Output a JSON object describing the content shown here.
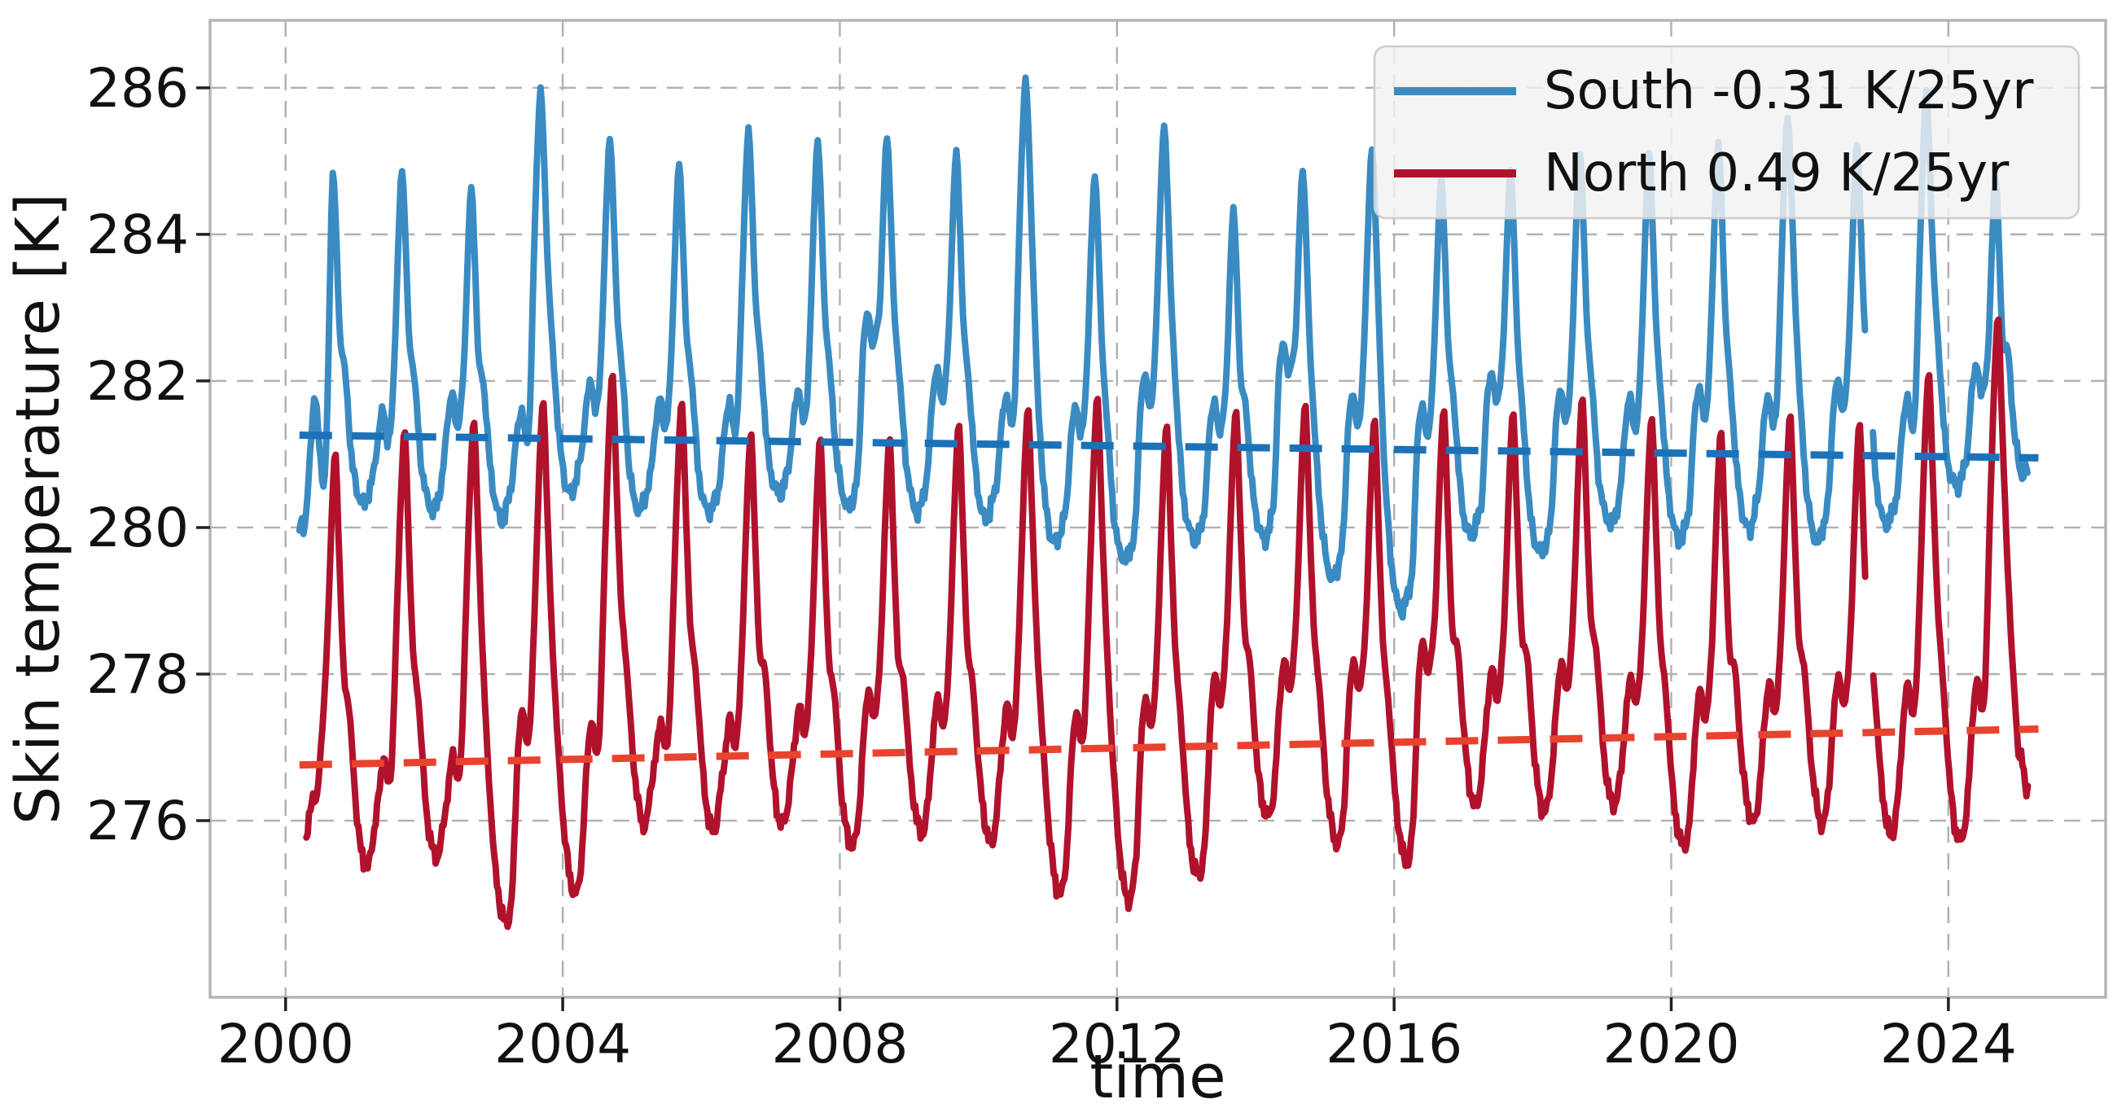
{
  "chart_data": {
    "type": "line",
    "title": "",
    "xlabel": "time",
    "ylabel": "Skin temperature [K]",
    "x_ticks": [
      2000,
      2004,
      2008,
      2012,
      2016,
      2020,
      2024
    ],
    "y_ticks": [
      276,
      278,
      280,
      282,
      284,
      286
    ],
    "x_range": [
      1998.91,
      2026.27
    ],
    "y_range": [
      273.59,
      286.92
    ],
    "grid": true,
    "legend_position": "upper right",
    "colors": {
      "south_line": "#3a8bc2",
      "south_trend": "#1b72b8",
      "north_line": "#b0122c",
      "north_trend": "#e8432e",
      "grid": "#b0b0b0",
      "spine": "#b5b5b5",
      "tick": "#222222",
      "text": "#111111",
      "legend_bg": "#f2f2f2",
      "legend_edge": "#cccccc"
    },
    "series": [
      {
        "name": "South",
        "label": "South -0.31 K/25yr",
        "trend_rate_k_per_25yr": -0.31,
        "t_start": 2000.2,
        "t_end": 2025.15,
        "peak_phase": 0.68,
        "gap": [
          2022.8,
          2022.9
        ],
        "trend": {
          "t": [
            2000.2,
            2025.3
          ],
          "v": [
            281.26,
            280.95
          ]
        },
        "years_start": 2000,
        "peaks": [
          285.15,
          285.1,
          284.85,
          286.2,
          285.55,
          285.2,
          285.65,
          285.5,
          285.55,
          285.35,
          286.35,
          285.05,
          285.7,
          284.55,
          285.1,
          285.4,
          285.0,
          285.1,
          285.35,
          285.3,
          285.45,
          285.85,
          285.45,
          286.15,
          285.0
        ],
        "troughs": [
          280.27,
          280.2,
          280.1,
          280.45,
          280.2,
          280.15,
          280.4,
          280.25,
          280.2,
          280.1,
          279.75,
          279.5,
          279.78,
          279.82,
          279.3,
          278.85,
          279.85,
          279.6,
          280.0,
          279.8,
          279.97,
          279.8,
          280.0,
          280.5,
          280.6
        ],
        "bumps": [
          281.67,
          281.9,
          281.7,
          282.1,
          281.85,
          281.8,
          281.95,
          283.0,
          282.25,
          281.9,
          281.75,
          282.15,
          281.8,
          282.6,
          281.9,
          281.75,
          282.2,
          281.95,
          281.85,
          282.0,
          281.9,
          282.1,
          281.85,
          282.3,
          282.0
        ],
        "template": [
          [
            0,
            "P",
            0
          ],
          [
            0.05,
            "P",
            -1.1
          ],
          [
            0.1,
            "P",
            -2.6
          ],
          [
            0.18,
            "L",
            1.9
          ],
          [
            0.27,
            "L",
            0.7
          ],
          [
            0.35,
            "L",
            0.18
          ],
          [
            0.45,
            "L",
            0
          ],
          [
            0.52,
            "L",
            0.22
          ],
          [
            0.59,
            "L",
            0.5
          ],
          [
            0.655,
            "B",
            -0.45
          ],
          [
            0.73,
            "B",
            0
          ],
          [
            0.79,
            "B",
            -0.58
          ],
          [
            0.845,
            "B",
            -0.3
          ],
          [
            0.9,
            "N",
            -2.6
          ],
          [
            0.95,
            "N",
            -1.1
          ],
          [
            1,
            "N",
            0
          ]
        ],
        "start_points": [
          [
            2000.2,
            279.95
          ],
          [
            2000.23,
            280.12
          ],
          [
            2000.26,
            279.98
          ],
          [
            2000.3,
            280.25
          ],
          [
            2000.35,
            280.9
          ],
          [
            2000.4,
            281.7
          ],
          [
            2000.43,
            281.88
          ],
          [
            2000.47,
            281.25
          ],
          [
            2000.52,
            280.75
          ],
          [
            2000.56,
            280.5
          ],
          [
            2000.6,
            281.4
          ],
          [
            2000.64,
            283.4
          ]
        ],
        "end_points": [
          [
            2025.08,
            280.62
          ],
          [
            2025.11,
            280.84
          ],
          [
            2025.15,
            280.75
          ]
        ],
        "cycle_cutoff": 2025.06,
        "noise_seed": 7
      },
      {
        "name": "North",
        "label": "North 0.49 K/25yr",
        "trend_rate_k_per_25yr": 0.49,
        "t_start": 2000.3,
        "t_end": 2025.15,
        "peak_phase": 0.72,
        "gap": [
          2022.81,
          2022.91
        ],
        "trend": {
          "t": [
            2000.2,
            2025.3
          ],
          "v": [
            276.76,
            277.25
          ]
        },
        "years_start": 2000,
        "peaks": [
          281.3,
          281.6,
          281.75,
          282.0,
          282.35,
          282.0,
          281.6,
          281.5,
          281.5,
          281.7,
          281.9,
          282.05,
          281.7,
          281.9,
          281.95,
          281.75,
          281.9,
          281.85,
          282.05,
          281.8,
          281.6,
          281.8,
          281.7,
          282.4,
          283.15
        ],
        "troughs": [
          275.33,
          275.45,
          274.57,
          275.0,
          275.95,
          275.85,
          275.9,
          275.6,
          275.8,
          275.7,
          275.0,
          274.9,
          275.2,
          276.0,
          275.66,
          275.43,
          276.2,
          276.1,
          276.17,
          275.6,
          275.96,
          275.96,
          275.8,
          275.7,
          276.0
        ],
        "bumps": [
          277.0,
          277.05,
          277.6,
          277.45,
          277.5,
          277.55,
          277.7,
          277.9,
          277.8,
          277.7,
          277.6,
          277.8,
          278.1,
          278.3,
          278.3,
          278.55,
          278.2,
          278.3,
          278.1,
          277.9,
          278.0,
          278.1,
          278.0,
          278.05,
          278.0
        ],
        "template": [
          [
            0,
            "P",
            0
          ],
          [
            0.05,
            "P",
            -1.6
          ],
          [
            0.12,
            "P",
            -3.4
          ],
          [
            0.2,
            "L",
            2.2
          ],
          [
            0.3,
            "L",
            0.8
          ],
          [
            0.38,
            "L",
            0.2
          ],
          [
            0.45,
            "L",
            0
          ],
          [
            0.5,
            "L",
            0.08
          ],
          [
            0.56,
            "L",
            0.55
          ],
          [
            0.63,
            "B",
            -0.6
          ],
          [
            0.7,
            "B",
            0
          ],
          [
            0.76,
            "B",
            -0.62
          ],
          [
            0.815,
            "B",
            -0.3
          ],
          [
            0.875,
            "N",
            -3.1
          ],
          [
            0.94,
            "N",
            -1.2
          ],
          [
            1,
            "N",
            0
          ]
        ],
        "start_points": [
          [
            2000.3,
            275.65
          ],
          [
            2000.33,
            275.95
          ],
          [
            2000.36,
            276.25
          ],
          [
            2000.4,
            276.4
          ],
          [
            2000.44,
            276.15
          ],
          [
            2000.5,
            276.9
          ],
          [
            2000.56,
            277.6
          ],
          [
            2000.62,
            278.9
          ],
          [
            2000.67,
            280.3
          ]
        ],
        "end_points": [
          [
            2025.05,
            277.0
          ],
          [
            2025.09,
            276.6
          ],
          [
            2025.12,
            276.38
          ],
          [
            2025.15,
            276.45
          ]
        ],
        "cycle_cutoff": 2025.03,
        "noise_seed": 13
      }
    ]
  }
}
